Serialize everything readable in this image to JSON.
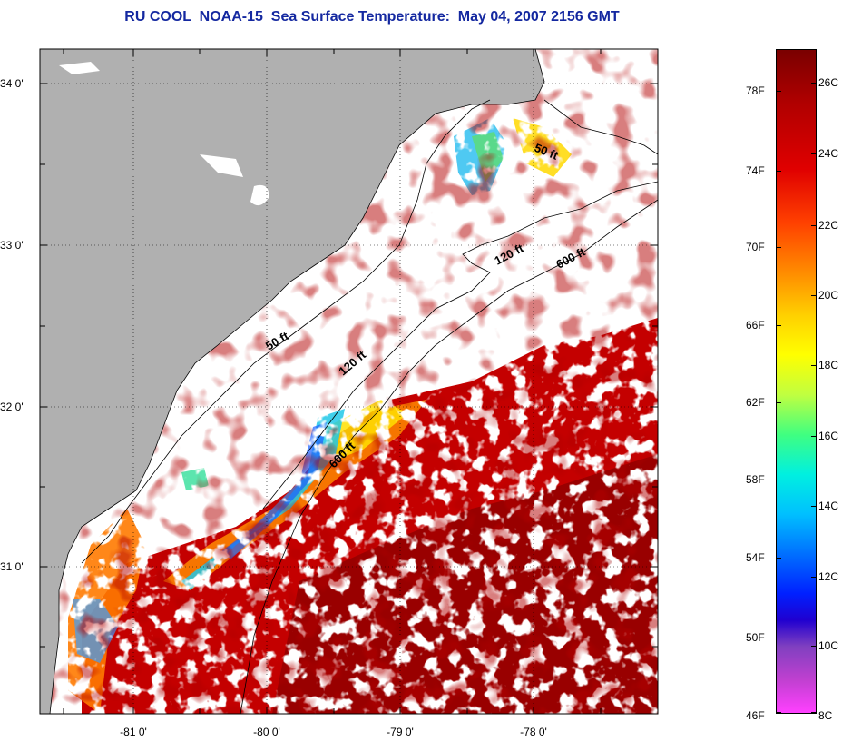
{
  "title": "RU COOL  NOAA-15  Sea Surface Temperature:  May 04, 2007 2156 GMT",
  "map": {
    "lat_labels": [
      "34 0'",
      "33 0'",
      "32 0'",
      "31 0'"
    ],
    "lon_labels": [
      "-81 0'",
      "-80 0'",
      "-79 0'",
      "-78 0'"
    ],
    "depth_contours": [
      {
        "label": "50 ft"
      },
      {
        "label": "120 ft"
      },
      {
        "label": "600 ft"
      }
    ],
    "colors": {
      "land": "#b0b0b0",
      "cloud": "#ffffff",
      "warm": "#c80000",
      "hot": "#8b0000",
      "orange": "#ff7a00",
      "yellow": "#ffee00",
      "cyan": "#20d0e0",
      "blue": "#1a60ff"
    }
  },
  "colorbar": {
    "fahrenheit_labels": [
      "78F",
      "74F",
      "70F",
      "66F",
      "62F",
      "58F",
      "54F",
      "50F",
      "46F"
    ],
    "celsius_labels": [
      "26C",
      "24C",
      "22C",
      "20C",
      "18C",
      "16C",
      "14C",
      "12C",
      "10C",
      "8C"
    ]
  }
}
